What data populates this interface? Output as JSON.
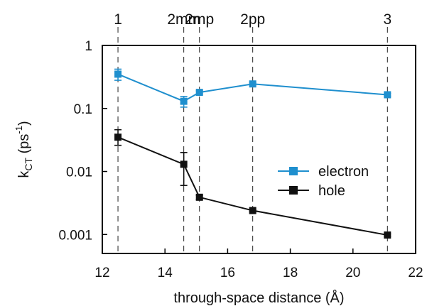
{
  "chart_data": {
    "type": "line",
    "xlabel": "through-space distance (Å)",
    "ylabel": {
      "base": "k",
      "sub": "CT",
      "unit_open": " (ps",
      "sup": "-1",
      "unit_close": ")"
    },
    "xlim": [
      12,
      22
    ],
    "ylim": [
      0.0005,
      1
    ],
    "yscale": "log",
    "x_ticks": [
      12,
      14,
      16,
      18,
      20,
      22
    ],
    "y_ticks": [
      {
        "value": 1,
        "label": "1"
      },
      {
        "value": 0.1,
        "label": "0.1"
      },
      {
        "value": 0.01,
        "label": "0.01"
      },
      {
        "value": 0.001,
        "label": "0.001"
      }
    ],
    "top_labels": [
      {
        "x": 12.5,
        "label": "1"
      },
      {
        "x": 14.6,
        "label": "2mm"
      },
      {
        "x": 15.1,
        "label": "2mp"
      },
      {
        "x": 16.8,
        "label": "2pp"
      },
      {
        "x": 21.1,
        "label": "3"
      }
    ],
    "legend_position": "center-right",
    "series": [
      {
        "name": "electron",
        "color": "#1f8fce",
        "x": [
          12.5,
          14.6,
          15.1,
          16.8,
          21.1
        ],
        "y": [
          0.35,
          0.13,
          0.18,
          0.245,
          0.165
        ],
        "err_low": [
          0.28,
          0.105,
          0.17,
          0.235,
          0.157
        ],
        "err_high": [
          0.42,
          0.155,
          0.19,
          0.255,
          0.173
        ]
      },
      {
        "name": "hole",
        "color": "#111111",
        "x": [
          12.5,
          14.6,
          15.1,
          16.8,
          21.1
        ],
        "y": [
          0.035,
          0.013,
          0.0039,
          0.0024,
          0.00098
        ],
        "err_low": [
          0.026,
          0.006,
          0.0036,
          0.0023,
          0.00094
        ],
        "err_high": [
          0.046,
          0.02,
          0.0042,
          0.0025,
          0.00102
        ]
      }
    ]
  }
}
